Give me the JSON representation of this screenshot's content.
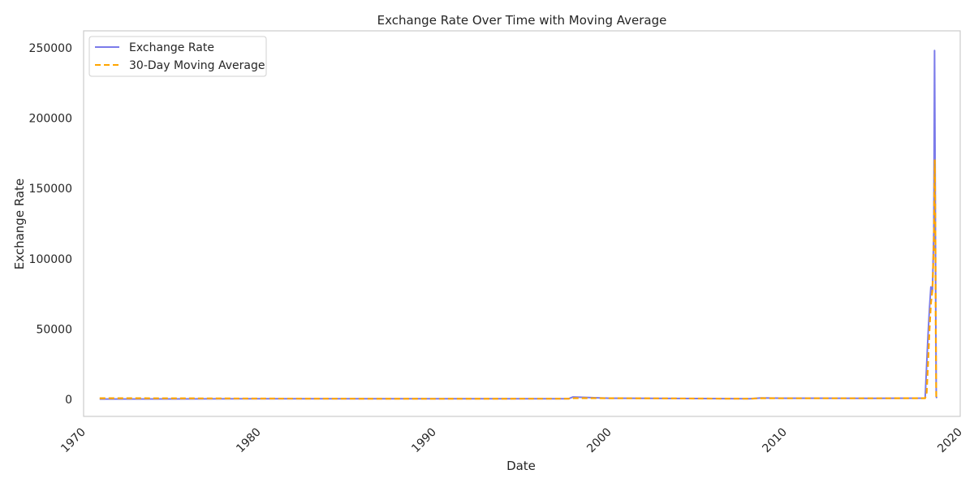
{
  "chart_data": {
    "type": "line",
    "title": "Exchange Rate Over Time with Moving Average",
    "xlabel": "Date",
    "ylabel": "Exchange Rate",
    "xlim": [
      "1970-01-01",
      "2020-01-01"
    ],
    "ylim": [
      -12000,
      262000
    ],
    "x_ticks": [
      {
        "date": "1970-01-01",
        "label": "1970"
      },
      {
        "date": "1980-01-01",
        "label": "1980"
      },
      {
        "date": "1990-01-01",
        "label": "1990"
      },
      {
        "date": "2000-01-01",
        "label": "2000"
      },
      {
        "date": "2010-01-01",
        "label": "2010"
      },
      {
        "date": "2020-01-01",
        "label": "2020"
      }
    ],
    "y_ticks": [
      {
        "value": 0,
        "label": "0"
      },
      {
        "value": 50000,
        "label": "50000"
      },
      {
        "value": 100000,
        "label": "100000"
      },
      {
        "value": 150000,
        "label": "150000"
      },
      {
        "value": 200000,
        "label": "200000"
      },
      {
        "value": 250000,
        "label": "250000"
      }
    ],
    "grid": false,
    "legend": "top-left",
    "series": [
      {
        "name": "Exchange Rate",
        "color": "#7b7bea",
        "style": "solid",
        "x": [
          "1970-12-01",
          "1975-01-01",
          "1980-01-01",
          "1985-01-01",
          "1990-01-01",
          "1995-01-01",
          "1997-09-01",
          "1997-12-01",
          "2000-01-01",
          "2005-01-01",
          "2008-01-01",
          "2008-09-01",
          "2010-01-01",
          "2015-01-01",
          "2018-01-01",
          "2018-02-01",
          "2018-03-01",
          "2018-04-01",
          "2018-05-01",
          "2018-06-01",
          "2018-07-01",
          "2018-07-15",
          "2018-08-01",
          "2018-08-10",
          "2018-08-20",
          "2018-09-01"
        ],
        "values": [
          350,
          400,
          600,
          550,
          500,
          550,
          600,
          1800,
          900,
          700,
          600,
          1100,
          900,
          850,
          1000,
          25000,
          45000,
          65000,
          80000,
          78000,
          120000,
          248000,
          130000,
          60000,
          2000,
          1000
        ]
      },
      {
        "name": "30-Day Moving Average",
        "color": "#ffa500",
        "style": "dashed",
        "x": [
          "1970-12-01",
          "1975-01-01",
          "1980-01-01",
          "1985-01-01",
          "1990-01-01",
          "1995-01-01",
          "1997-09-01",
          "1998-01-01",
          "2000-01-01",
          "2005-01-01",
          "2008-01-01",
          "2008-09-01",
          "2010-01-01",
          "2015-01-01",
          "2018-01-01",
          "2018-02-01",
          "2018-03-01",
          "2018-04-01",
          "2018-05-01",
          "2018-06-01",
          "2018-07-01",
          "2018-07-20",
          "2018-08-01",
          "2018-08-10",
          "2018-08-20",
          "2018-09-01"
        ],
        "values": [
          900,
          850,
          700,
          550,
          500,
          550,
          600,
          1000,
          900,
          700,
          600,
          900,
          850,
          850,
          950,
          5000,
          25000,
          50000,
          68000,
          78000,
          110000,
          170000,
          120000,
          50000,
          1500,
          1000
        ]
      }
    ]
  }
}
